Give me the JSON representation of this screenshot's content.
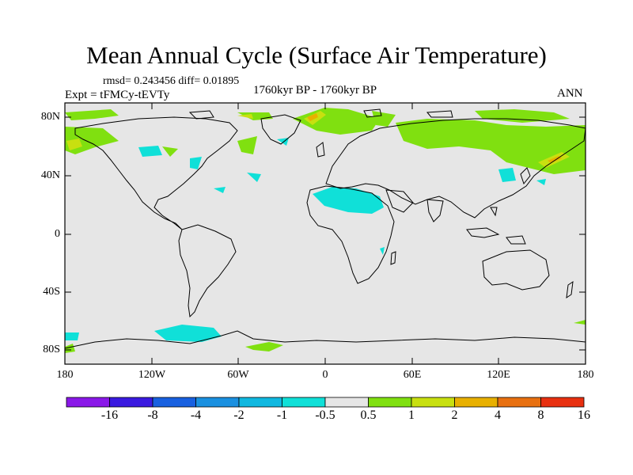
{
  "header": {
    "title": "Mean Annual Cycle (Surface Air Temperature)",
    "stats": "rmsd= 0.243456 diff= 0.01895",
    "experiment": "Expt = tFMCy-tEVTy",
    "period": "1760kyr BP - 1760kyr BP",
    "season": "ANN"
  },
  "axes": {
    "y_labels": [
      "80N",
      "40N",
      "0",
      "40S",
      "80S"
    ],
    "x_labels": [
      "180",
      "120W",
      "60W",
      "0",
      "60E",
      "120E",
      "180"
    ]
  },
  "colorbar": {
    "labels": [
      "-16",
      "-8",
      "-4",
      "-2",
      "-1",
      "-0.5",
      "0.5",
      "1",
      "2",
      "4",
      "8",
      "16"
    ],
    "colors": [
      "#8a18e8",
      "#3a1ae0",
      "#1860e0",
      "#1a90e0",
      "#10b8e0",
      "#10e0d8",
      "#e6e6e6",
      "#80e010",
      "#c8e010",
      "#e8b000",
      "#e87010",
      "#e83010"
    ]
  },
  "map_colors": {
    "background": "#e6e6e6",
    "cool_anomaly": "#10e0d8",
    "warm_anomaly": "#80e010",
    "strong_warm_anomaly": "#c8e010",
    "orange_anomaly": "#e8b000"
  }
}
